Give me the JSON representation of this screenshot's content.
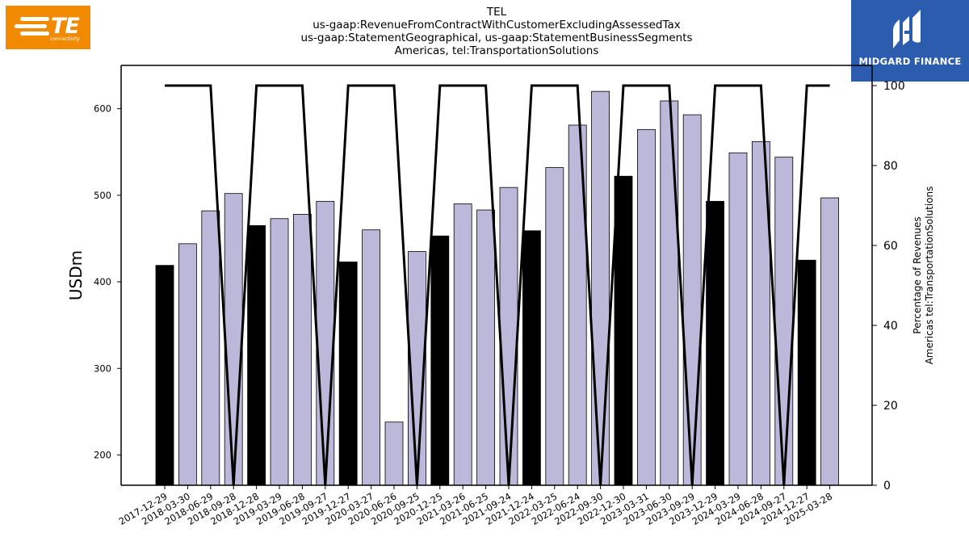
{
  "header": {
    "title_lines": [
      "TEL",
      "us-gaap:RevenueFromContractWithCustomerExcludingAssessedTax",
      "us-gaap:StatementGeographical, us-gaap:StatementBusinessSegments",
      "Americas, tel:TransportationSolutions"
    ]
  },
  "logos": {
    "left": {
      "text": "TE",
      "subtext": "connectivity",
      "color": "#f28a00"
    },
    "right": {
      "text": "MIDGARD FINANCE",
      "color": "#2b5cae"
    }
  },
  "colors": {
    "bar_highlight": "#000000",
    "bar_default": "#bcb8d9",
    "line": "#000000"
  },
  "chart_data": {
    "type": "bar",
    "ylabel": "USDm",
    "y2label_lines": [
      "Percentage of Revenues",
      "Americas tel:TransportationSolutions"
    ],
    "ylim": [
      165,
      650
    ],
    "y_ticks": [
      200,
      300,
      400,
      500,
      600
    ],
    "y2lim": [
      0,
      100
    ],
    "y2_ticks": [
      0,
      20,
      40,
      60,
      80,
      100
    ],
    "grid": false,
    "categories": [
      "2017-12-29",
      "2018-03-30",
      "2018-06-29",
      "2018-09-28",
      "2018-12-28",
      "2019-03-29",
      "2019-06-28",
      "2019-09-27",
      "2019-12-27",
      "2020-03-27",
      "2020-06-26",
      "2020-09-25",
      "2020-12-25",
      "2021-03-26",
      "2021-06-25",
      "2021-09-24",
      "2021-12-24",
      "2022-03-25",
      "2022-06-24",
      "2022-09-30",
      "2022-12-30",
      "2023-03-31",
      "2023-06-30",
      "2023-09-29",
      "2023-12-29",
      "2024-03-29",
      "2024-06-28",
      "2024-09-27",
      "2024-12-27",
      "2025-03-28"
    ],
    "values": [
      419,
      444,
      482,
      502,
      465,
      473,
      478,
      493,
      423,
      460,
      238,
      435,
      453,
      490,
      483,
      509,
      459,
      532,
      581,
      620,
      522,
      576,
      609,
      593,
      493,
      549,
      562,
      544,
      425,
      497
    ],
    "highlighted": [
      true,
      false,
      false,
      false,
      true,
      false,
      false,
      false,
      true,
      false,
      false,
      false,
      true,
      false,
      false,
      false,
      true,
      false,
      false,
      false,
      true,
      false,
      false,
      false,
      true,
      false,
      false,
      false,
      true,
      false
    ],
    "series": [
      {
        "axis": "right",
        "type": "line",
        "values": [
          100,
          100,
          100,
          0,
          100,
          100,
          100,
          0,
          100,
          100,
          100,
          0,
          100,
          100,
          100,
          0,
          100,
          100,
          100,
          0,
          100,
          100,
          100,
          0,
          100,
          100,
          100,
          0,
          100,
          100
        ]
      }
    ]
  }
}
